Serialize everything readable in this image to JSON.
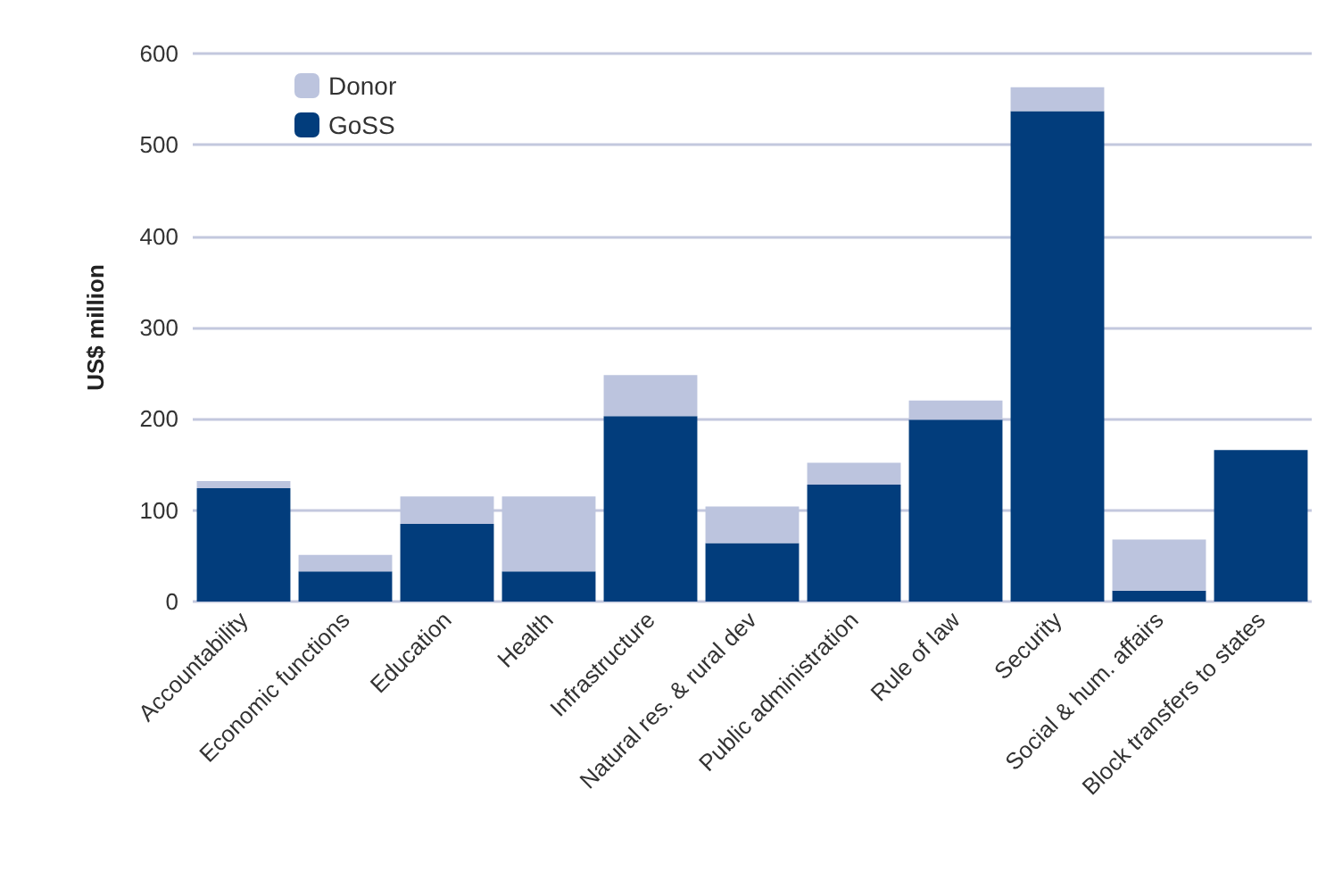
{
  "chart_data": {
    "type": "bar",
    "ylabel": "US$ million",
    "stacked": true,
    "categories": [
      "Accountability",
      "Economic functions",
      "Education",
      "Health",
      "Infrastructure",
      "Natural res. & rural dev",
      "Public administration",
      "Rule of law",
      "Security",
      "Social & hum. affairs",
      "Block transfers to states"
    ],
    "series": [
      {
        "name": "GoSS",
        "color": "#023d7c",
        "values": [
          124,
          33,
          85,
          33,
          203,
          64,
          128,
          199,
          537,
          12,
          166
        ]
      },
      {
        "name": "Donor",
        "color": "#bcc4de",
        "values": [
          8,
          18,
          30,
          82,
          45,
          40,
          24,
          21,
          26,
          56,
          0
        ]
      }
    ],
    "ylim": [
      0,
      600
    ],
    "yticks": [
      0,
      100,
      200,
      300,
      400,
      500,
      600
    ],
    "grid": "y",
    "legend": "top left"
  }
}
